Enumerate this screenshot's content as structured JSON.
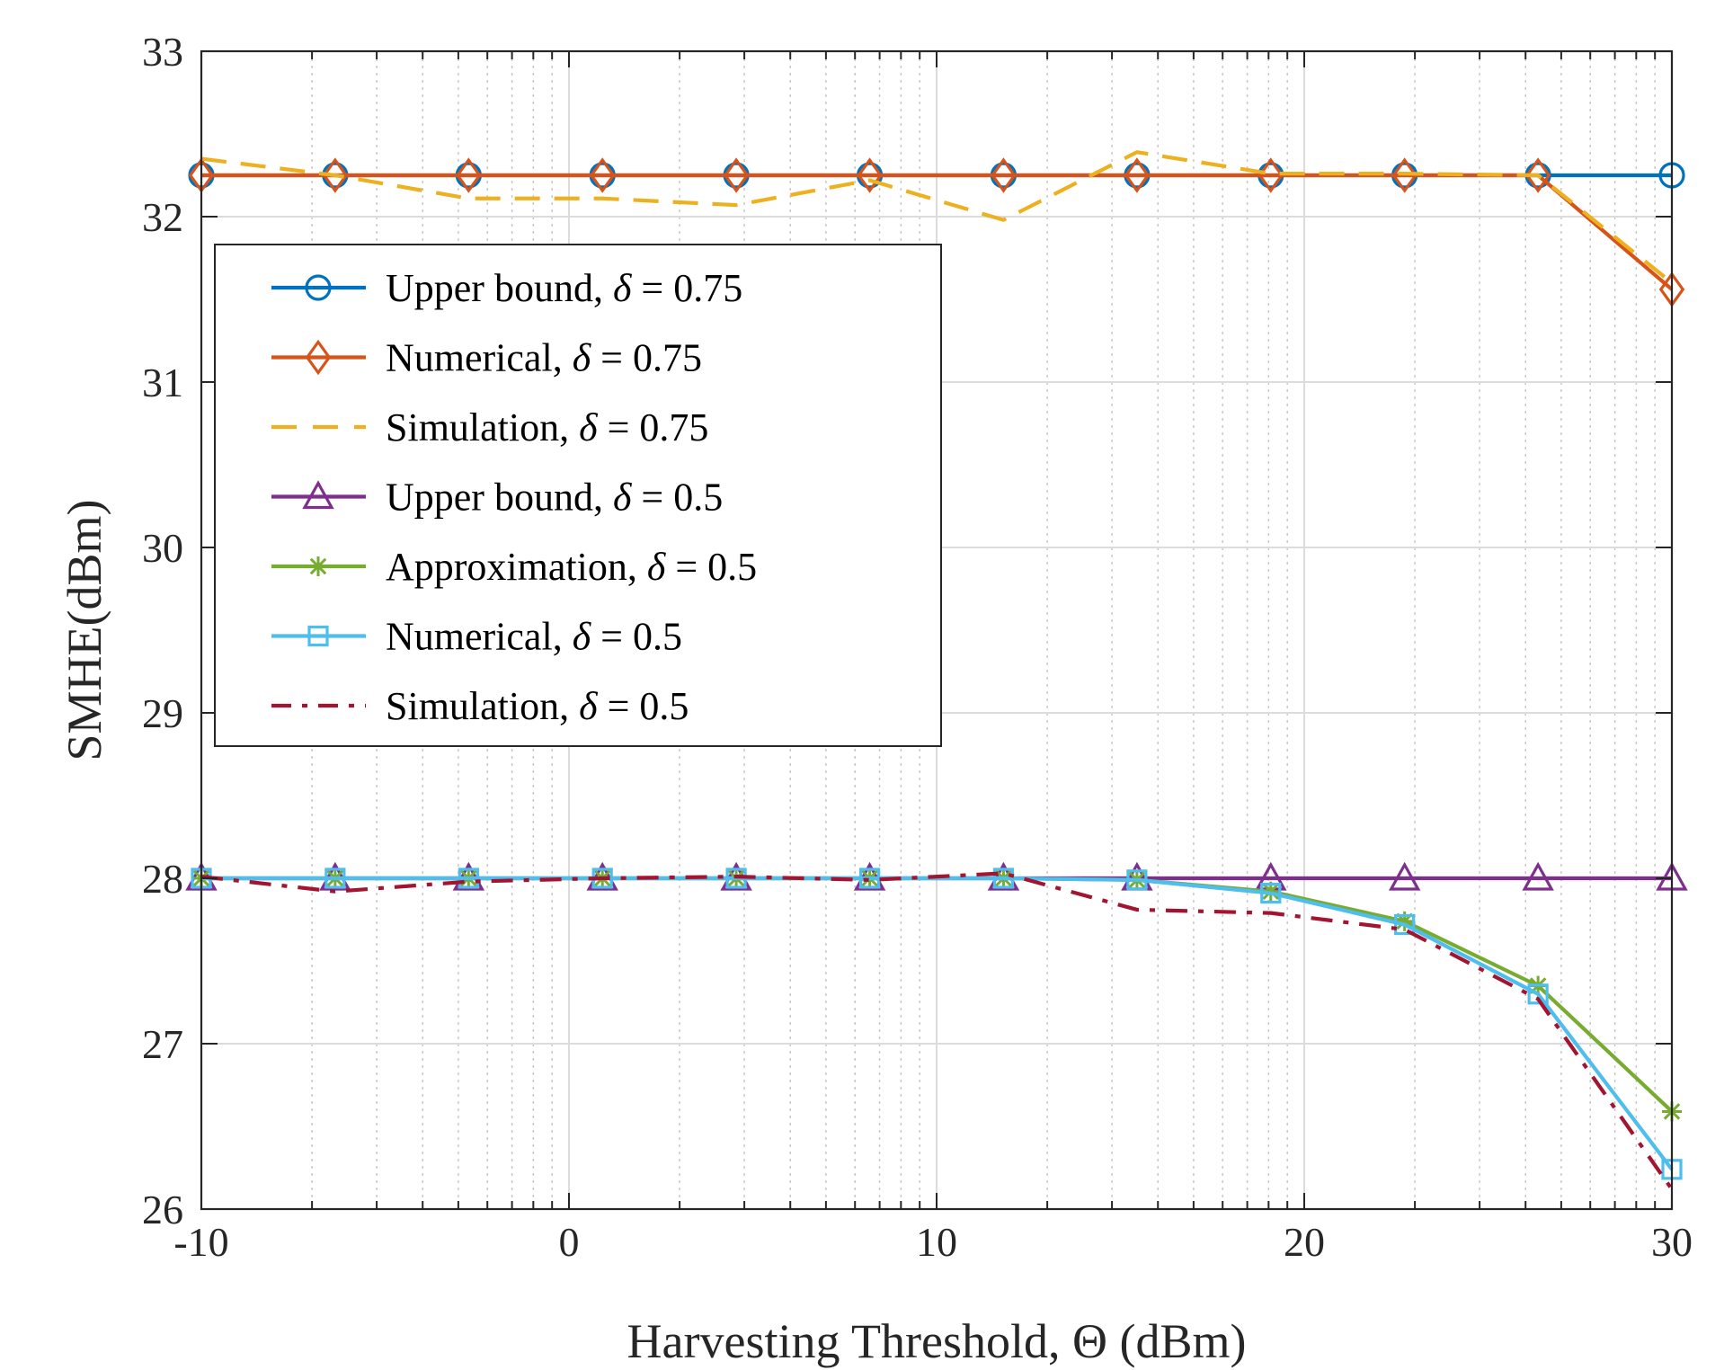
{
  "chart_data": {
    "type": "line",
    "title": "",
    "xlabel": "Harvesting Threshold,  Θ (dBm)",
    "ylabel": "SMHE(dBm)",
    "xlim": [
      -10,
      30
    ],
    "ylim": [
      26,
      33
    ],
    "x_ticks": [
      -10,
      0,
      10,
      20,
      30
    ],
    "x_tick_labels": [
      "-10",
      "0",
      "10",
      "20",
      "30"
    ],
    "y_ticks": [
      26,
      27,
      28,
      29,
      30,
      31,
      32,
      33
    ],
    "y_tick_labels": [
      "26",
      "27",
      "28",
      "29",
      "30",
      "31",
      "32",
      "33"
    ],
    "grid": true,
    "legend_position": "upper-left",
    "x": [
      -10,
      -6.36,
      -2.73,
      0.91,
      4.55,
      8.18,
      11.82,
      15.45,
      19.09,
      22.73,
      26.36,
      30
    ],
    "series": [
      {
        "name": "Upper bound, ",
        "delta": "δ = 0.75",
        "color": "#0072bd",
        "marker": "circle",
        "dash": "solid",
        "values": [
          32.25,
          32.25,
          32.25,
          32.25,
          32.25,
          32.25,
          32.25,
          32.25,
          32.25,
          32.25,
          32.25,
          32.25
        ]
      },
      {
        "name": "Numerical, ",
        "delta": "δ = 0.75",
        "color": "#d95319",
        "marker": "diamond",
        "dash": "solid",
        "values": [
          32.25,
          32.25,
          32.25,
          32.25,
          32.25,
          32.25,
          32.25,
          32.25,
          32.25,
          32.25,
          32.25,
          31.56
        ]
      },
      {
        "name": "Simulation, ",
        "delta": "δ = 0.75",
        "color": "#edb120",
        "marker": "none",
        "dash": "dashed",
        "x": [
          -10,
          -6.36,
          -2.73,
          0.91,
          4.55,
          8.18,
          11.82,
          15.45,
          19.09,
          22.73,
          26.36,
          30
        ],
        "values": [
          32.35,
          32.25,
          32.11,
          32.11,
          32.07,
          32.22,
          31.98,
          32.39,
          32.26,
          32.26,
          32.25,
          31.6
        ]
      },
      {
        "name": "Upper bound, ",
        "delta": "δ = 0.5",
        "color": "#7e2f8e",
        "marker": "triangle",
        "dash": "solid",
        "values": [
          28.0,
          28.0,
          28.0,
          28.0,
          28.0,
          28.0,
          28.0,
          28.0,
          28.0,
          28.0,
          28.0,
          28.0
        ]
      },
      {
        "name": "Approximation, ",
        "delta": "δ = 0.5",
        "color": "#77ac30",
        "marker": "asterisk",
        "dash": "solid",
        "values": [
          28.0,
          28.0,
          28.0,
          28.0,
          28.0,
          28.0,
          28.0,
          27.99,
          27.92,
          27.74,
          27.35,
          26.59
        ]
      },
      {
        "name": "Numerical, ",
        "delta": "δ = 0.5",
        "color": "#4dbeee",
        "marker": "square",
        "dash": "solid",
        "values": [
          28.0,
          28.0,
          28.0,
          28.0,
          28.0,
          28.0,
          28.0,
          27.99,
          27.91,
          27.72,
          27.3,
          26.24
        ]
      },
      {
        "name": "Simulation, ",
        "delta": "δ = 0.5",
        "color": "#a2142f",
        "marker": "none",
        "dash": "dashdot",
        "values": [
          28.01,
          27.92,
          27.98,
          28.0,
          28.01,
          27.99,
          28.03,
          27.81,
          27.79,
          27.69,
          27.27,
          26.12
        ]
      }
    ]
  }
}
